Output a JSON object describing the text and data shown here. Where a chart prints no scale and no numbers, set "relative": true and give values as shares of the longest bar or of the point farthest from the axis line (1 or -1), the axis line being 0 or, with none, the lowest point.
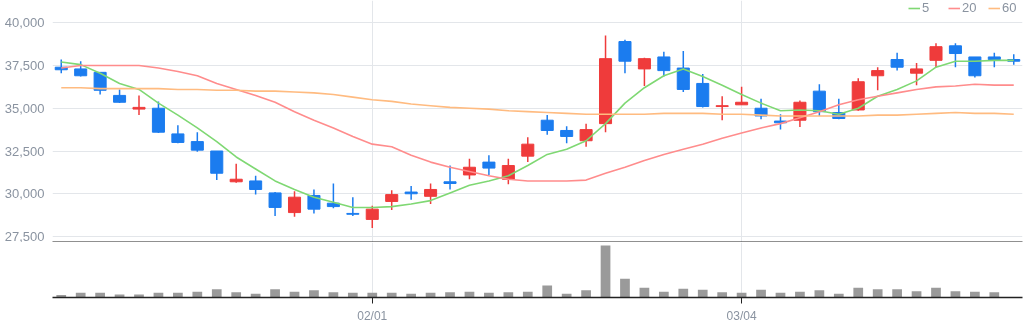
{
  "chart_data": [
    {
      "type": "candlestick",
      "categories": [
        null,
        null,
        null,
        null,
        null,
        null,
        null,
        null,
        null,
        null,
        null,
        null,
        null,
        null,
        null,
        null,
        null,
        null,
        null,
        null,
        null,
        null,
        null,
        null,
        null,
        null,
        null,
        null,
        null,
        null,
        null,
        null,
        null,
        null,
        null,
        null,
        null,
        null,
        null,
        null,
        null,
        null,
        null,
        null,
        null,
        null,
        null,
        null,
        null,
        null
      ],
      "ohlc": [
        [
          37400,
          37850,
          37050,
          37250
        ],
        [
          37300,
          37750,
          36850,
          36900
        ],
        [
          37100,
          37100,
          35800,
          36050
        ],
        [
          35750,
          36100,
          35300,
          35350
        ],
        [
          34950,
          35750,
          34600,
          35050
        ],
        [
          35000,
          35400,
          33550,
          33600
        ],
        [
          33500,
          34000,
          32950,
          33000
        ],
        [
          33050,
          33600,
          32450,
          32550
        ],
        [
          32500,
          32500,
          30800,
          31200
        ],
        [
          30700,
          31750,
          30650,
          30850
        ],
        [
          30750,
          31050,
          29950,
          30250
        ],
        [
          30050,
          30100,
          28700,
          29200
        ],
        [
          28900,
          30150,
          28650,
          29800
        ],
        [
          29900,
          30250,
          28850,
          29100
        ],
        [
          29450,
          30600,
          29150,
          29250
        ],
        [
          28850,
          29800,
          28700,
          28800
        ],
        [
          28500,
          29300,
          28000,
          29100
        ],
        [
          29550,
          30200,
          29050,
          29950
        ],
        [
          30100,
          30450,
          29650,
          30000
        ],
        [
          29850,
          30600,
          29400,
          30250
        ],
        [
          30700,
          31650,
          30250,
          30600
        ],
        [
          31100,
          32050,
          30850,
          31550
        ],
        [
          31850,
          32250,
          31100,
          31500
        ],
        [
          30850,
          32050,
          30550,
          31650
        ],
        [
          32200,
          33300,
          31850,
          32900
        ],
        [
          34300,
          34600,
          33450,
          33700
        ],
        [
          33700,
          33950,
          32950,
          33350
        ],
        [
          33100,
          34100,
          32750,
          33750
        ],
        [
          34100,
          39250,
          33600,
          37900
        ],
        [
          38900,
          39000,
          37050,
          37750
        ],
        [
          37300,
          37950,
          36300,
          37900
        ],
        [
          38000,
          38300,
          36850,
          37200
        ],
        [
          37350,
          38350,
          35950,
          36100
        ],
        [
          36450,
          37000,
          35050,
          35100
        ],
        [
          35100,
          35700,
          34300,
          35150
        ],
        [
          35200,
          36250,
          35200,
          35350
        ],
        [
          35000,
          35550,
          34350,
          34550
        ],
        [
          34250,
          34650,
          33750,
          34150
        ],
        [
          34300,
          35450,
          33900,
          35350
        ],
        [
          36000,
          36400,
          34550,
          34800
        ],
        [
          34750,
          35550,
          34350,
          34400
        ],
        [
          34900,
          36750,
          34850,
          36550
        ],
        [
          36900,
          37400,
          36050,
          37200
        ],
        [
          37850,
          38250,
          37200,
          37400
        ],
        [
          37050,
          37650,
          36350,
          37300
        ],
        [
          37800,
          38800,
          37400,
          38600
        ],
        [
          38650,
          38800,
          37400,
          38200
        ],
        [
          38000,
          38000,
          36800,
          36900
        ],
        [
          38000,
          38250,
          37400,
          37850
        ],
        [
          37850,
          38150,
          37550,
          37750
        ]
      ],
      "colors": [
        "#1b7cef",
        "#1b7cef",
        "#1b7cef",
        "#1b7cef",
        "#ef3b3b",
        "#1b7cef",
        "#1b7cef",
        "#1b7cef",
        "#1b7cef",
        "#ef3b3b",
        "#1b7cef",
        "#1b7cef",
        "#ef3b3b",
        "#1b7cef",
        "#1b7cef",
        "#1b7cef",
        "#ef3b3b",
        "#ef3b3b",
        "#1b7cef",
        "#ef3b3b",
        "#1b7cef",
        "#ef3b3b",
        "#1b7cef",
        "#ef3b3b",
        "#ef3b3b",
        "#1b7cef",
        "#1b7cef",
        "#ef3b3b",
        "#ef3b3b",
        "#1b7cef",
        "#ef3b3b",
        "#1b7cef",
        "#1b7cef",
        "#1b7cef",
        "#ef3b3b",
        "#ef3b3b",
        "#1b7cef",
        "#1b7cef",
        "#ef3b3b",
        "#1b7cef",
        "#1b7cef",
        "#ef3b3b",
        "#ef3b3b",
        "#1b7cef",
        "#ef3b3b",
        "#ef3b3b",
        "#1b7cef",
        "#1b7cef",
        "#1b7cef",
        "#1b7cef"
      ],
      "series": [
        {
          "name": "5",
          "type": "line",
          "color": "#7fd873",
          "values": [
            37700,
            37550,
            37050,
            36450,
            36100,
            35300,
            34600,
            33850,
            33050,
            32150,
            31450,
            30750,
            30250,
            29800,
            29500,
            29200,
            29200,
            29250,
            29400,
            29600,
            30050,
            30500,
            30750,
            31050,
            31650,
            32300,
            32600,
            33100,
            34100,
            35300,
            36200,
            36900,
            37300,
            36850,
            36350,
            35800,
            35300,
            34850,
            34900,
            34850,
            34650,
            35000,
            35700,
            36100,
            36600,
            37400,
            37750,
            37750,
            37800,
            37800
          ]
        },
        {
          "name": "20",
          "type": "line",
          "color": "#ff8c8c",
          "values": [
            37350,
            37500,
            37500,
            37500,
            37500,
            37350,
            37150,
            36900,
            36450,
            36100,
            35750,
            35350,
            34800,
            34300,
            33850,
            33350,
            32900,
            32750,
            32250,
            31850,
            31550,
            31300,
            31050,
            30850,
            30750,
            30750,
            30750,
            30800,
            31200,
            31550,
            31950,
            32300,
            32600,
            32900,
            33250,
            33550,
            33850,
            34100,
            34450,
            34800,
            35200,
            35500,
            35700,
            35900,
            36100,
            36250,
            36300,
            36400,
            36350,
            36350
          ]
        },
        {
          "name": "60",
          "type": "line",
          "color": "#ffbb80",
          "values": [
            36200,
            36200,
            36150,
            36150,
            36150,
            36150,
            36100,
            36100,
            36050,
            36050,
            36000,
            36000,
            35950,
            35900,
            35800,
            35650,
            35500,
            35400,
            35250,
            35150,
            35050,
            35000,
            34950,
            34850,
            34800,
            34750,
            34700,
            34650,
            34650,
            34650,
            34650,
            34700,
            34700,
            34700,
            34650,
            34650,
            34600,
            34550,
            34550,
            34550,
            34550,
            34550,
            34600,
            34600,
            34650,
            34700,
            34750,
            34700,
            34700,
            34650
          ]
        }
      ],
      "ylim": [
        27150,
        41300
      ],
      "yticks": [
        {
          "value": 27500,
          "label": "27,500"
        },
        {
          "value": 30000,
          "label": "30,000"
        },
        {
          "value": 32500,
          "label": "32,500"
        },
        {
          "value": 35000,
          "label": "35,000"
        },
        {
          "value": 37500,
          "label": "37,500"
        },
        {
          "value": 40000,
          "label": "40,000"
        }
      ],
      "grid": true,
      "legend": "top right",
      "tick_labels": "y"
    },
    {
      "type": "bar",
      "relative": true,
      "categories": [
        null,
        null,
        null,
        null,
        null,
        null,
        null,
        null,
        null,
        null,
        null,
        null,
        null,
        null,
        null,
        null,
        "02/01",
        null,
        null,
        null,
        null,
        null,
        null,
        null,
        null,
        null,
        null,
        null,
        null,
        null,
        null,
        null,
        null,
        null,
        null,
        "03/04",
        null,
        null,
        null,
        null,
        null,
        null,
        null,
        null,
        null,
        null,
        null,
        null,
        null,
        null
      ],
      "series": [
        {
          "color": "#9a9a9a",
          "values": [
            0.05,
            0.09,
            0.09,
            0.06,
            0.06,
            0.09,
            0.09,
            0.11,
            0.16,
            0.1,
            0.07,
            0.16,
            0.11,
            0.14,
            0.1,
            0.09,
            0.09,
            0.09,
            0.07,
            0.09,
            0.1,
            0.11,
            0.09,
            0.1,
            0.11,
            0.23,
            0.07,
            0.14,
            1,
            0.36,
            0.19,
            0.11,
            0.17,
            0.15,
            0.1,
            0.09,
            0.15,
            0.09,
            0.11,
            0.14,
            0.07,
            0.19,
            0.16,
            0.16,
            0.12,
            0.19,
            0.12,
            0.11,
            0.1,
            0.01
          ]
        }
      ],
      "grid": "x",
      "tick_labels": "x"
    }
  ]
}
